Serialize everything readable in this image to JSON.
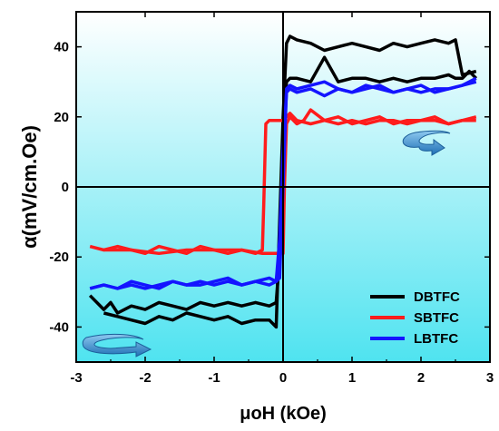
{
  "chart_data": {
    "type": "line",
    "xlabel": "μoH (kOe)",
    "ylabel": "α(mV/cm.Oe)",
    "xlim": [
      -3,
      3
    ],
    "ylim": [
      -50,
      50
    ],
    "x_ticks": [
      -3,
      -2,
      -1,
      0,
      1,
      2,
      3
    ],
    "y_ticks": [
      -40,
      -20,
      0,
      20,
      40
    ],
    "grid": false,
    "legend_position": "bottom-right",
    "background": {
      "top": "#ffffff",
      "bottom": "#4fe3f0"
    },
    "series": [
      {
        "name": "DBTFC",
        "color": "#000000",
        "branches": [
          {
            "x": [
              -2.8,
              -2.6,
              -2.5,
              -2.4,
              -2.2,
              -2.0,
              -1.8,
              -1.6,
              -1.4,
              -1.2,
              -1.0,
              -0.8,
              -0.6,
              -0.4,
              -0.2,
              -0.1,
              -0.05,
              0,
              0.05,
              0.1,
              0.2,
              0.4,
              0.6,
              0.8,
              1.0,
              1.2,
              1.4,
              1.6,
              1.8,
              2.0,
              2.2,
              2.4,
              2.5,
              2.6,
              2.7,
              2.8
            ],
            "y": [
              -31,
              -35,
              -33,
              -36,
              -34,
              -35,
              -33,
              -34,
              -35,
              -33,
              -34,
              -33,
              -34,
              -33,
              -34,
              -33,
              -20,
              10,
              30,
              31,
              31,
              30,
              37,
              30,
              31,
              31,
              30,
              31,
              30,
              31,
              31,
              32,
              31,
              31,
              33,
              31
            ]
          },
          {
            "x": [
              2.8,
              2.6,
              2.5,
              2.4,
              2.2,
              2.0,
              1.8,
              1.6,
              1.4,
              1.2,
              1.0,
              0.8,
              0.6,
              0.4,
              0.2,
              0.1,
              0.05,
              0,
              -0.05,
              -0.1,
              -0.2,
              -0.4,
              -0.6,
              -0.8,
              -1.0,
              -1.2,
              -1.4,
              -1.6,
              -1.8,
              -2.0,
              -2.2,
              -2.4,
              -2.6
            ],
            "y": [
              33,
              32,
              42,
              41,
              42,
              41,
              40,
              41,
              39,
              40,
              41,
              40,
              39,
              41,
              42,
              43,
              41,
              20,
              -10,
              -40,
              -38,
              -38,
              -39,
              -37,
              -38,
              -37,
              -36,
              -38,
              -37,
              -39,
              -38,
              -37,
              -36
            ]
          }
        ]
      },
      {
        "name": "SBTFC",
        "color": "#ff1c1c",
        "branches": [
          {
            "x": [
              -2.8,
              -2.6,
              -2.4,
              -2.2,
              -2.0,
              -1.8,
              -1.6,
              -1.4,
              -1.2,
              -1.0,
              -0.8,
              -0.6,
              -0.4,
              -0.3,
              -0.28,
              -0.25,
              -0.2,
              -0.1,
              0,
              0.1,
              0.2,
              0.4,
              0.6,
              0.8,
              1.0,
              1.2,
              1.4,
              1.6,
              1.8,
              2.0,
              2.2,
              2.4,
              2.6,
              2.8
            ],
            "y": [
              -17,
              -18,
              -17,
              -18,
              -19,
              -17,
              -18,
              -19,
              -17,
              -18,
              -19,
              -18,
              -19,
              -18,
              -5,
              18,
              19,
              19,
              19,
              21,
              19,
              18,
              19,
              20,
              18,
              19,
              20,
              18,
              19,
              19,
              20,
              18,
              19,
              20
            ]
          },
          {
            "x": [
              2.8,
              2.6,
              2.4,
              2.2,
              2.0,
              1.8,
              1.6,
              1.4,
              1.2,
              1.0,
              0.8,
              0.6,
              0.4,
              0.3,
              0.2,
              0.1,
              0.05,
              0.02,
              0,
              -0.1,
              -0.3,
              -0.6,
              -1.0,
              -1.4,
              -1.8,
              -2.2,
              -2.6
            ],
            "y": [
              19,
              19,
              18,
              19,
              19,
              18,
              19,
              19,
              18,
              19,
              18,
              19,
              22,
              19,
              18,
              20,
              18,
              0,
              -19,
              -19,
              -19,
              -18,
              -18,
              -18,
              -19,
              -18,
              -18
            ]
          }
        ]
      },
      {
        "name": "LBTFC",
        "color": "#1414ff",
        "branches": [
          {
            "x": [
              -2.8,
              -2.6,
              -2.4,
              -2.2,
              -2.0,
              -1.8,
              -1.6,
              -1.4,
              -1.2,
              -1.0,
              -0.8,
              -0.6,
              -0.4,
              -0.2,
              -0.1,
              -0.05,
              0,
              0.05,
              0.1,
              0.2,
              0.4,
              0.6,
              0.8,
              1.0,
              1.2,
              1.4,
              1.6,
              1.8,
              2.0,
              2.2,
              2.4,
              2.6,
              2.8
            ],
            "y": [
              -29,
              -28,
              -29,
              -27,
              -28,
              -29,
              -27,
              -28,
              -27,
              -28,
              -27,
              -28,
              -27,
              -26,
              -27,
              -15,
              10,
              27,
              28,
              27,
              28,
              26,
              28,
              27,
              28,
              29,
              27,
              28,
              27,
              28,
              28,
              29,
              30
            ]
          },
          {
            "x": [
              2.8,
              2.6,
              2.4,
              2.2,
              2.0,
              1.8,
              1.6,
              1.4,
              1.2,
              1.0,
              0.8,
              0.6,
              0.4,
              0.2,
              0.1,
              0.05,
              0,
              -0.05,
              -0.1,
              -0.2,
              -0.4,
              -0.6,
              -0.8,
              -1.0,
              -1.2,
              -1.4,
              -1.6,
              -1.8,
              -2.0,
              -2.2,
              -2.4,
              -2.6,
              -2.8
            ],
            "y": [
              31,
              29,
              28,
              27,
              29,
              28,
              27,
              28,
              29,
              27,
              28,
              30,
              29,
              28,
              29,
              28,
              0,
              -26,
              -27,
              -28,
              -27,
              -28,
              -26,
              -27,
              -28,
              -28,
              -27,
              -28,
              -29,
              -28,
              -29,
              -28,
              -29
            ]
          }
        ]
      }
    ]
  }
}
